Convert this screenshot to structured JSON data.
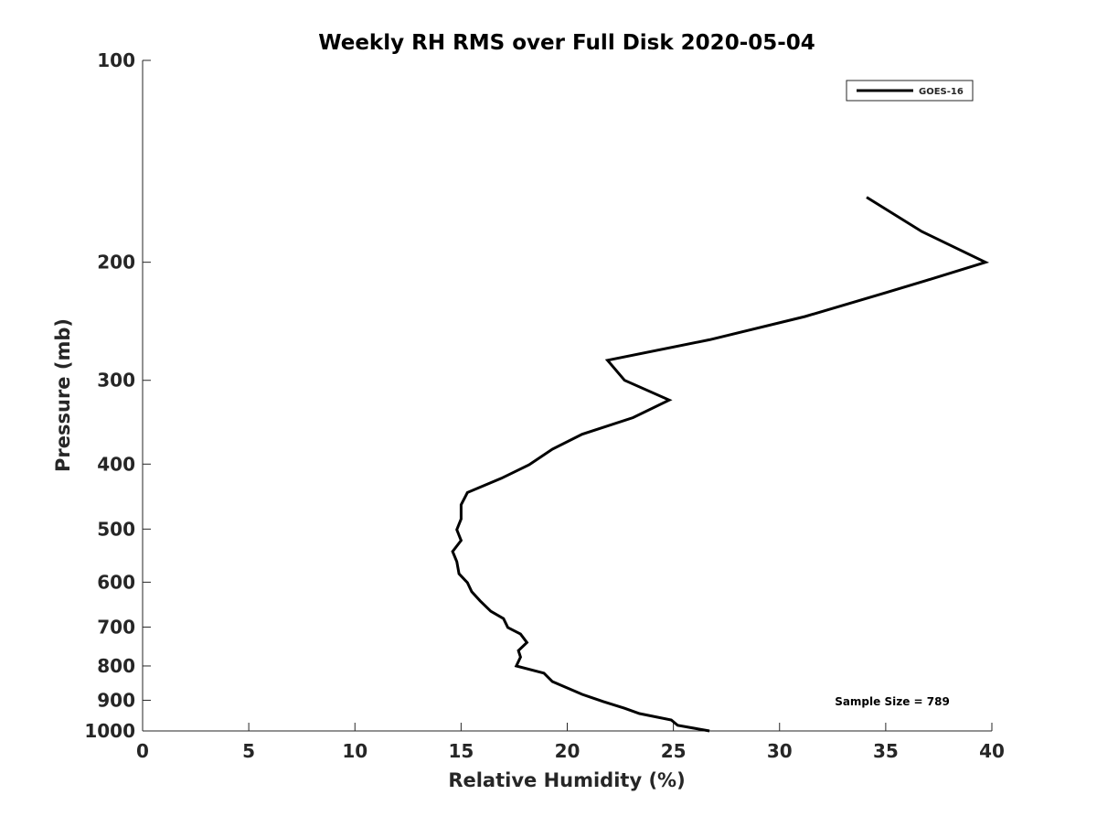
{
  "chart_data": {
    "type": "line",
    "title": "Weekly RH RMS over Full Disk 2020-05-04",
    "xlabel": "Relative Humidity (%)",
    "ylabel": "Pressure (mb)",
    "xlim": [
      0,
      40
    ],
    "ylim": [
      100,
      1000
    ],
    "yscale": "log",
    "yreversed": true,
    "grid": false,
    "x_ticks": [
      0,
      5,
      10,
      15,
      20,
      25,
      30,
      35,
      40
    ],
    "y_ticks": [
      100,
      200,
      300,
      400,
      500,
      600,
      700,
      800,
      900,
      1000
    ],
    "legend": {
      "placement": "top-right",
      "entries": [
        "GOES-16"
      ]
    },
    "annotation": "Sample Size = 789",
    "series": [
      {
        "name": "GOES-16",
        "color": "#000000",
        "x": [
          34.1,
          36.7,
          39.7,
          36.9,
          35.0,
          31.2,
          26.7,
          21.9,
          22.7,
          24.8,
          23.1,
          20.7,
          19.3,
          18.2,
          16.9,
          15.3,
          15.0,
          15.0,
          14.8,
          15.0,
          14.6,
          14.8,
          14.9,
          15.3,
          15.5,
          15.9,
          16.4,
          17.0,
          17.2,
          17.8,
          18.1,
          17.7,
          17.8,
          17.6,
          18.9,
          19.3,
          20.7,
          21.7,
          22.7,
          23.4,
          24.9,
          25.2,
          26.7
        ],
        "pressure": [
          160,
          180,
          200,
          213,
          222,
          241,
          261,
          280,
          300,
          321,
          341,
          361,
          380,
          401,
          420,
          441,
          460,
          483,
          501,
          520,
          540,
          559,
          583,
          601,
          620,
          640,
          663,
          680,
          701,
          717,
          738,
          759,
          776,
          800,
          820,
          844,
          882,
          904,
          925,
          942,
          963,
          981,
          1000
        ]
      }
    ]
  }
}
